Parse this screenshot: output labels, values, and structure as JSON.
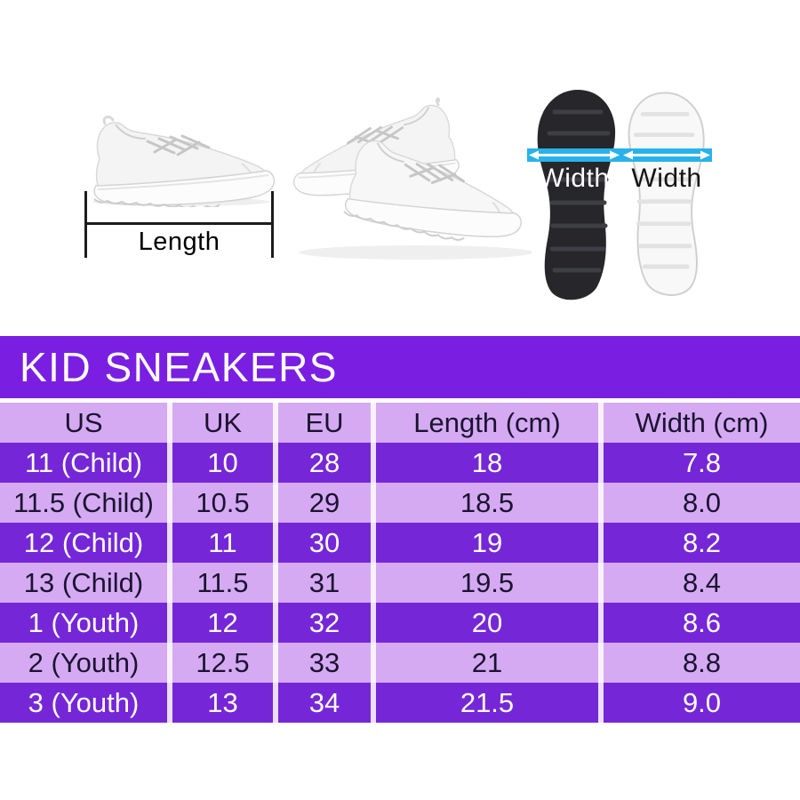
{
  "hero": {
    "length_label": "Length",
    "width_label_black_sole": "Width",
    "width_label_white_sole": "Width",
    "icons": {
      "side_sneaker": "white-sneaker-side-view-photo",
      "sneaker_pair": "white-sneaker-pair-photo",
      "black_sole": "black-shoe-sole-bottom-view",
      "white_sole": "white-shoe-sole-bottom-view",
      "width_arrow": "double-headed-width-arrow",
      "length_bracket": "length-measurement-bracket"
    }
  },
  "banner": {
    "title": "KID SNEAKERS"
  },
  "chart_data": {
    "type": "table",
    "title": "KID SNEAKERS",
    "columns": [
      "US",
      "UK",
      "EU",
      "Length (cm)",
      "Width (cm)"
    ],
    "rows": [
      [
        "11 (Child)",
        "10",
        "28",
        "18",
        "7.8"
      ],
      [
        "11.5 (Child)",
        "10.5",
        "29",
        "18.5",
        "8.0"
      ],
      [
        "12 (Child)",
        "11",
        "30",
        "19",
        "8.2"
      ],
      [
        "13 (Child)",
        "11.5",
        "31",
        "19.5",
        "8.4"
      ],
      [
        "1 (Youth)",
        "12",
        "32",
        "20",
        "8.6"
      ],
      [
        "2 (Youth)",
        "12.5",
        "33",
        "21",
        "8.8"
      ],
      [
        "3 (Youth)",
        "13",
        "34",
        "21.5",
        "9.0"
      ]
    ],
    "row_style_order": [
      "dark",
      "light",
      "dark",
      "light",
      "dark",
      "light",
      "dark"
    ],
    "header_style": "light"
  },
  "colors": {
    "banner_purple": "#7a1fe2",
    "row_dark_purple": "#7527d8",
    "row_light_lavender": "#d5aaf3",
    "measure_accent_cyan": "#29b2ea",
    "text_dark": "#1b1430",
    "text_white": "#ffffff"
  }
}
